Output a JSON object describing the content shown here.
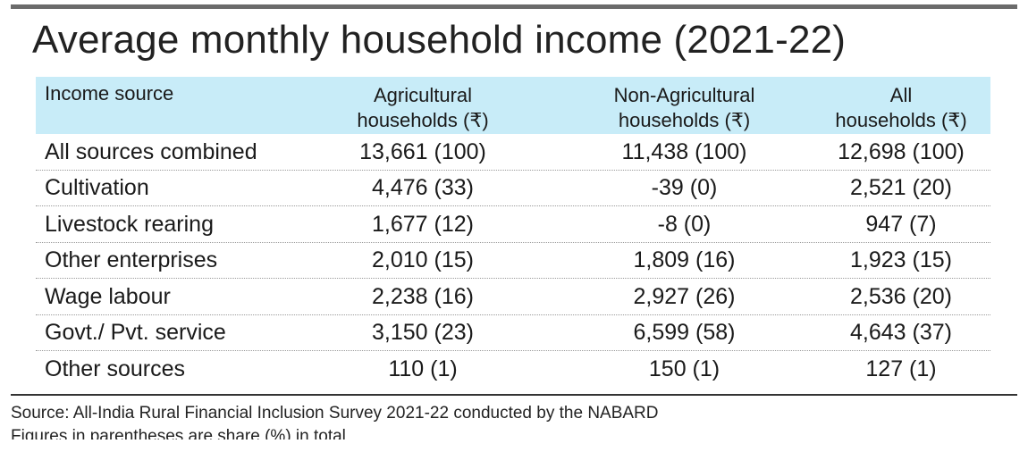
{
  "title": "Average monthly household income (2021-22)",
  "chart_data": {
    "type": "table",
    "title": "Average monthly household income (2021-22)",
    "columns": [
      "Income source",
      [
        "Agricultural",
        "households (₹)"
      ],
      [
        "Non-Agricultural",
        "households (₹)"
      ],
      [
        "All",
        "households (₹)"
      ]
    ],
    "rows": [
      [
        "All sources combined",
        "13,661 (100)",
        "11,438 (100)",
        "12,698 (100)"
      ],
      [
        "Cultivation",
        "4,476 (33)",
        "-39 (0)",
        "2,521 (20)"
      ],
      [
        "Livestock rearing",
        "1,677 (12)",
        "-8 (0)",
        "947 (7)"
      ],
      [
        "Other enterprises",
        "2,010 (15)",
        "1,809 (16)",
        "1,923 (15)"
      ],
      [
        "Wage labour",
        "2,238 (16)",
        "2,927 (26)",
        "2,536 (20)"
      ],
      [
        "Govt./ Pvt. service",
        "3,150 (23)",
        "6,599 (58)",
        "4,643 (37)"
      ],
      [
        "Other sources",
        "110 (1)",
        "150 (1)",
        "127 (1)"
      ]
    ]
  },
  "footer": {
    "source": "Source: All-India Rural Financial Inclusion Survey 2021-22 conducted by the NABARD",
    "note": "Figures in parentheses are share (%) in total"
  },
  "colors": {
    "header_bg": "#c8ecf8",
    "top_rule": "#6b6b6b"
  }
}
